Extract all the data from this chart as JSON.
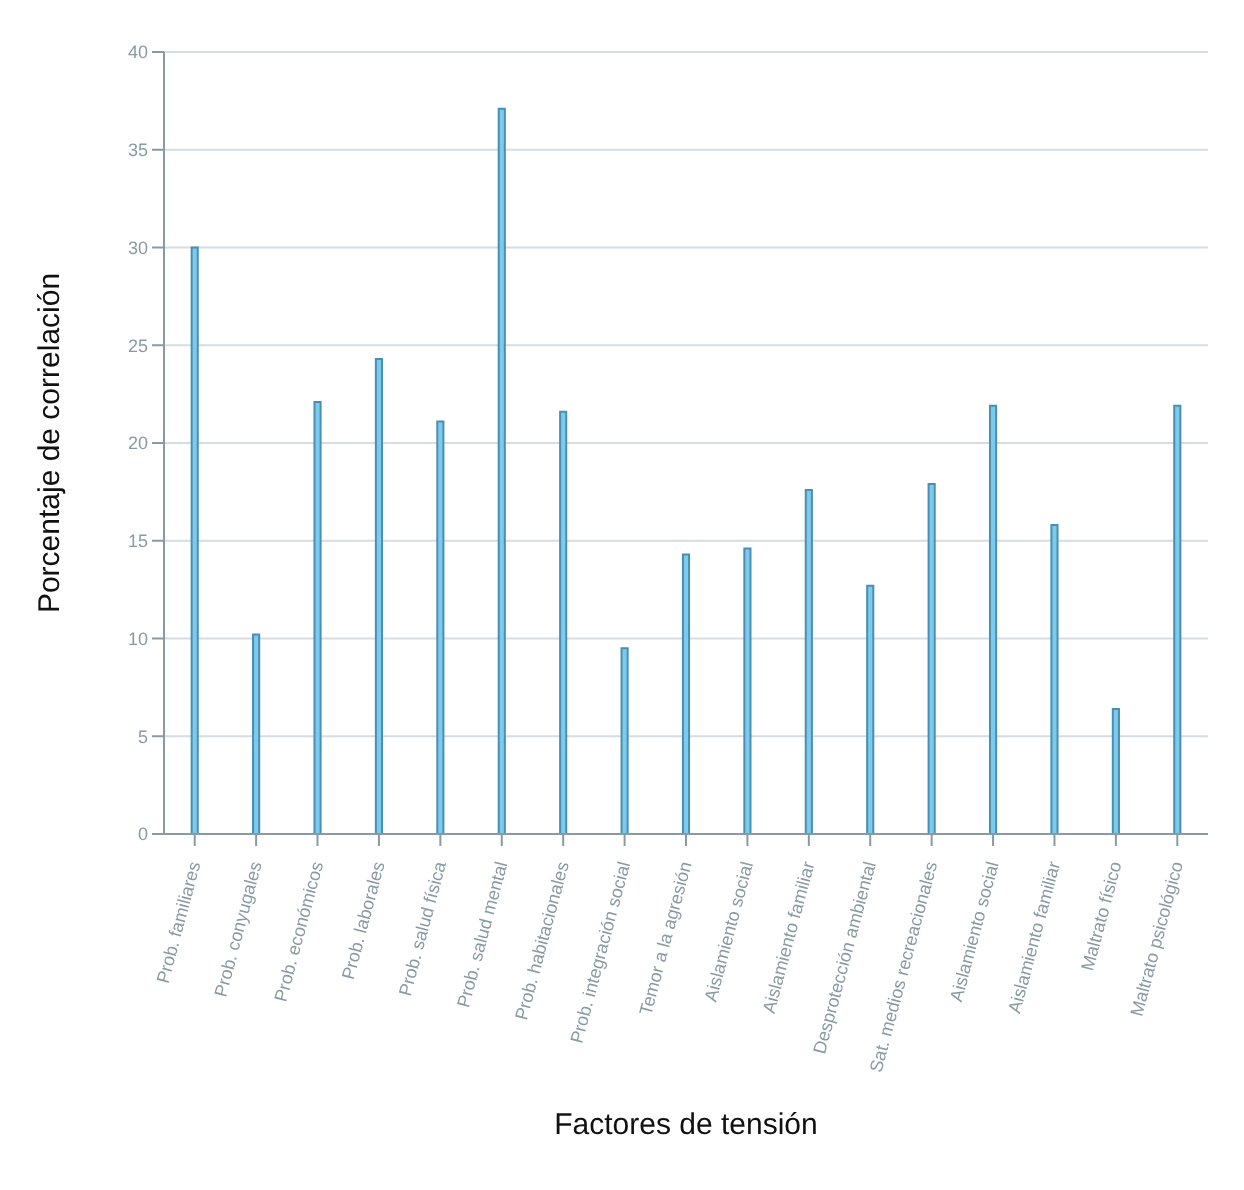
{
  "chart_data": {
    "type": "bar",
    "xlabel": "Factores de tensión",
    "ylabel": "Porcentaje de correlación",
    "categories": [
      "Prob. familiares",
      "Prob. conyugales",
      "Prob. económicos",
      "Prob. laborales",
      "Prob. salud física",
      "Prob. salud mental",
      "Prob. habitacionales",
      "Prob. integración social",
      "Temor a la agresión",
      "Aislamiento social",
      "Aislamiento familiar",
      "Desprotección ambiental",
      "Sat. medios recreacionales",
      "Aislamiento social",
      "Aislamiento familiar",
      "Maltrato físico",
      "Maltrato psicológico"
    ],
    "values": [
      30,
      10.2,
      22.1,
      24.3,
      21.1,
      37.1,
      21.6,
      9.5,
      14.3,
      14.6,
      17.6,
      12.7,
      17.9,
      21.9,
      15.8,
      6.4,
      21.9
    ],
    "color": "#7ccbef",
    "ylim": [
      0,
      40
    ],
    "yticks": [
      0,
      5,
      10,
      15,
      20,
      25,
      30,
      35,
      40
    ],
    "grid": "y"
  }
}
